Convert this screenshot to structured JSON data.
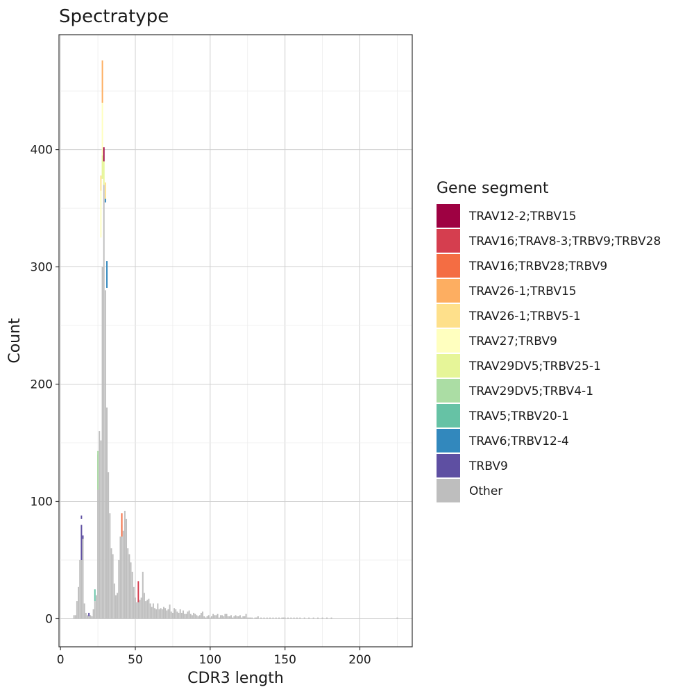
{
  "chart_data": {
    "type": "bar",
    "title": "Spectratype",
    "xlabel": "CDR3 length",
    "ylabel": "Count",
    "xlim": [
      -1,
      235
    ],
    "ylim": [
      -24,
      498
    ],
    "x_ticks": [
      0,
      50,
      100,
      150,
      200
    ],
    "y_ticks": [
      0,
      100,
      200,
      300,
      400
    ],
    "grid": true,
    "legend_position": "right",
    "legend_title": "Gene segment",
    "legend": [
      {
        "name": "TRAV12-2;TRBV15",
        "color": "#9E0142"
      },
      {
        "name": "TRAV16;TRAV8-3;TRBV9;TRBV28",
        "color": "#D53E4F"
      },
      {
        "name": "TRAV16;TRBV28;TRBV9",
        "color": "#F46D43"
      },
      {
        "name": "TRAV26-1;TRBV15",
        "color": "#FDAE61"
      },
      {
        "name": "TRAV26-1;TRBV5-1",
        "color": "#FEE08B"
      },
      {
        "name": "TRAV27;TRBV9",
        "color": "#FFFFBF"
      },
      {
        "name": "TRAV29DV5;TRBV25-1",
        "color": "#E6F598"
      },
      {
        "name": "TRAV29DV5;TRBV4-1",
        "color": "#ABDDA4"
      },
      {
        "name": "TRAV5;TRBV20-1",
        "color": "#66C2A5"
      },
      {
        "name": "TRAV6;TRBV12-4",
        "color": "#3288BD"
      },
      {
        "name": "TRBV9",
        "color": "#5E4FA2"
      },
      {
        "name": "Other",
        "color": "#BEBEBE"
      }
    ],
    "other_bars": [
      [
        9,
        3
      ],
      [
        10,
        3
      ],
      [
        11,
        15
      ],
      [
        12,
        27
      ],
      [
        13,
        50
      ],
      [
        14,
        80
      ],
      [
        15,
        70
      ],
      [
        16,
        13
      ],
      [
        17,
        5
      ],
      [
        18,
        3
      ],
      [
        19,
        2
      ],
      [
        20,
        3
      ],
      [
        21,
        2
      ],
      [
        22,
        8
      ],
      [
        23,
        15
      ],
      [
        24,
        20
      ],
      [
        25,
        140
      ],
      [
        26,
        160
      ],
      [
        27,
        152
      ],
      [
        28,
        300
      ],
      [
        29,
        370
      ],
      [
        30,
        280
      ],
      [
        31,
        180
      ],
      [
        32,
        125
      ],
      [
        33,
        90
      ],
      [
        34,
        60
      ],
      [
        35,
        55
      ],
      [
        36,
        30
      ],
      [
        37,
        20
      ],
      [
        38,
        22
      ],
      [
        39,
        50
      ],
      [
        40,
        70
      ],
      [
        41,
        80
      ],
      [
        42,
        75
      ],
      [
        43,
        92
      ],
      [
        44,
        85
      ],
      [
        45,
        60
      ],
      [
        46,
        55
      ],
      [
        47,
        48
      ],
      [
        48,
        40
      ],
      [
        49,
        27
      ],
      [
        50,
        18
      ],
      [
        51,
        14
      ],
      [
        52,
        15
      ],
      [
        53,
        16
      ],
      [
        54,
        18
      ],
      [
        55,
        40
      ],
      [
        56,
        22
      ],
      [
        57,
        15
      ],
      [
        58,
        16
      ],
      [
        59,
        17
      ],
      [
        60,
        13
      ],
      [
        61,
        10
      ],
      [
        62,
        13
      ],
      [
        63,
        9
      ],
      [
        64,
        8
      ],
      [
        65,
        13
      ],
      [
        66,
        8
      ],
      [
        67,
        9
      ],
      [
        68,
        8
      ],
      [
        69,
        10
      ],
      [
        70,
        9
      ],
      [
        71,
        7
      ],
      [
        72,
        8
      ],
      [
        73,
        12
      ],
      [
        74,
        6
      ],
      [
        75,
        5
      ],
      [
        76,
        9
      ],
      [
        77,
        8
      ],
      [
        78,
        6
      ],
      [
        79,
        5
      ],
      [
        80,
        8
      ],
      [
        81,
        5
      ],
      [
        82,
        7
      ],
      [
        83,
        4
      ],
      [
        84,
        4
      ],
      [
        85,
        6
      ],
      [
        86,
        7
      ],
      [
        87,
        4
      ],
      [
        88,
        3
      ],
      [
        89,
        5
      ],
      [
        90,
        4
      ],
      [
        91,
        3
      ],
      [
        92,
        2
      ],
      [
        93,
        3
      ],
      [
        94,
        5
      ],
      [
        95,
        6
      ],
      [
        96,
        2
      ],
      [
        97,
        1
      ],
      [
        98,
        2
      ],
      [
        99,
        3
      ],
      [
        100,
        1
      ],
      [
        101,
        2
      ],
      [
        102,
        4
      ],
      [
        103,
        3
      ],
      [
        104,
        3
      ],
      [
        105,
        4
      ],
      [
        106,
        1
      ],
      [
        107,
        3
      ],
      [
        108,
        3
      ],
      [
        109,
        2
      ],
      [
        110,
        4
      ],
      [
        111,
        4
      ],
      [
        112,
        2
      ],
      [
        113,
        2
      ],
      [
        114,
        3
      ],
      [
        115,
        1
      ],
      [
        116,
        2
      ],
      [
        117,
        3
      ],
      [
        118,
        2
      ],
      [
        119,
        2
      ],
      [
        120,
        3
      ],
      [
        121,
        1
      ],
      [
        122,
        2
      ],
      [
        123,
        2
      ],
      [
        124,
        4
      ],
      [
        125,
        1
      ],
      [
        126,
        1
      ],
      [
        127,
        1
      ],
      [
        128,
        1
      ],
      [
        130,
        1
      ],
      [
        131,
        1
      ],
      [
        132,
        2
      ],
      [
        134,
        1
      ],
      [
        136,
        1
      ],
      [
        138,
        1
      ],
      [
        140,
        1
      ],
      [
        142,
        1
      ],
      [
        144,
        1
      ],
      [
        146,
        1
      ],
      [
        148,
        1
      ],
      [
        149,
        1
      ],
      [
        150,
        1
      ],
      [
        152,
        1
      ],
      [
        154,
        1
      ],
      [
        156,
        1
      ],
      [
        158,
        1
      ],
      [
        160,
        1
      ],
      [
        163,
        1
      ],
      [
        166,
        1
      ],
      [
        169,
        1
      ],
      [
        172,
        1
      ],
      [
        175,
        1
      ],
      [
        178,
        1
      ],
      [
        181,
        1
      ],
      [
        225,
        1
      ]
    ],
    "segment_bars": [
      {
        "x": 14,
        "y0": 50,
        "y1": 80,
        "series": "TRBV9"
      },
      {
        "x": 14,
        "y0": 85,
        "y1": 88,
        "series": "TRBV9"
      },
      {
        "x": 15,
        "y0": 68,
        "y1": 71,
        "series": "TRBV9"
      },
      {
        "x": 19,
        "y0": 2,
        "y1": 5,
        "series": "TRBV9"
      },
      {
        "x": 23,
        "y0": 15,
        "y1": 25,
        "series": "TRAV5;TRBV20-1"
      },
      {
        "x": 25,
        "y0": 110,
        "y1": 143,
        "series": "TRAV29DV5;TRBV4-1"
      },
      {
        "x": 27,
        "y0": 325,
        "y1": 365,
        "series": "TRAV27;TRBV9"
      },
      {
        "x": 27,
        "y0": 365,
        "y1": 378,
        "series": "TRAV26-1;TRBV5-1"
      },
      {
        "x": 28,
        "y0": 375,
        "y1": 395,
        "series": "TRAV29DV5;TRBV25-1"
      },
      {
        "x": 28,
        "y0": 395,
        "y1": 440,
        "series": "TRAV27;TRBV9"
      },
      {
        "x": 28,
        "y0": 440,
        "y1": 476,
        "series": "TRAV26-1;TRBV15"
      },
      {
        "x": 29,
        "y0": 370,
        "y1": 390,
        "series": "TRAV29DV5;TRBV25-1"
      },
      {
        "x": 29,
        "y0": 390,
        "y1": 402,
        "series": "TRAV12-2;TRBV15"
      },
      {
        "x": 30,
        "y0": 355,
        "y1": 358,
        "series": "TRAV6;TRBV12-4"
      },
      {
        "x": 30,
        "y0": 358,
        "y1": 372,
        "series": "TRAV26-1;TRBV5-1"
      },
      {
        "x": 31,
        "y0": 282,
        "y1": 305,
        "series": "TRAV6;TRBV12-4"
      },
      {
        "x": 41,
        "y0": 70,
        "y1": 90,
        "series": "TRAV16;TRBV28;TRBV9"
      },
      {
        "x": 52,
        "y0": 14,
        "y1": 32,
        "series": "TRAV16;TRAV8-3;TRBV9;TRBV28"
      }
    ]
  }
}
